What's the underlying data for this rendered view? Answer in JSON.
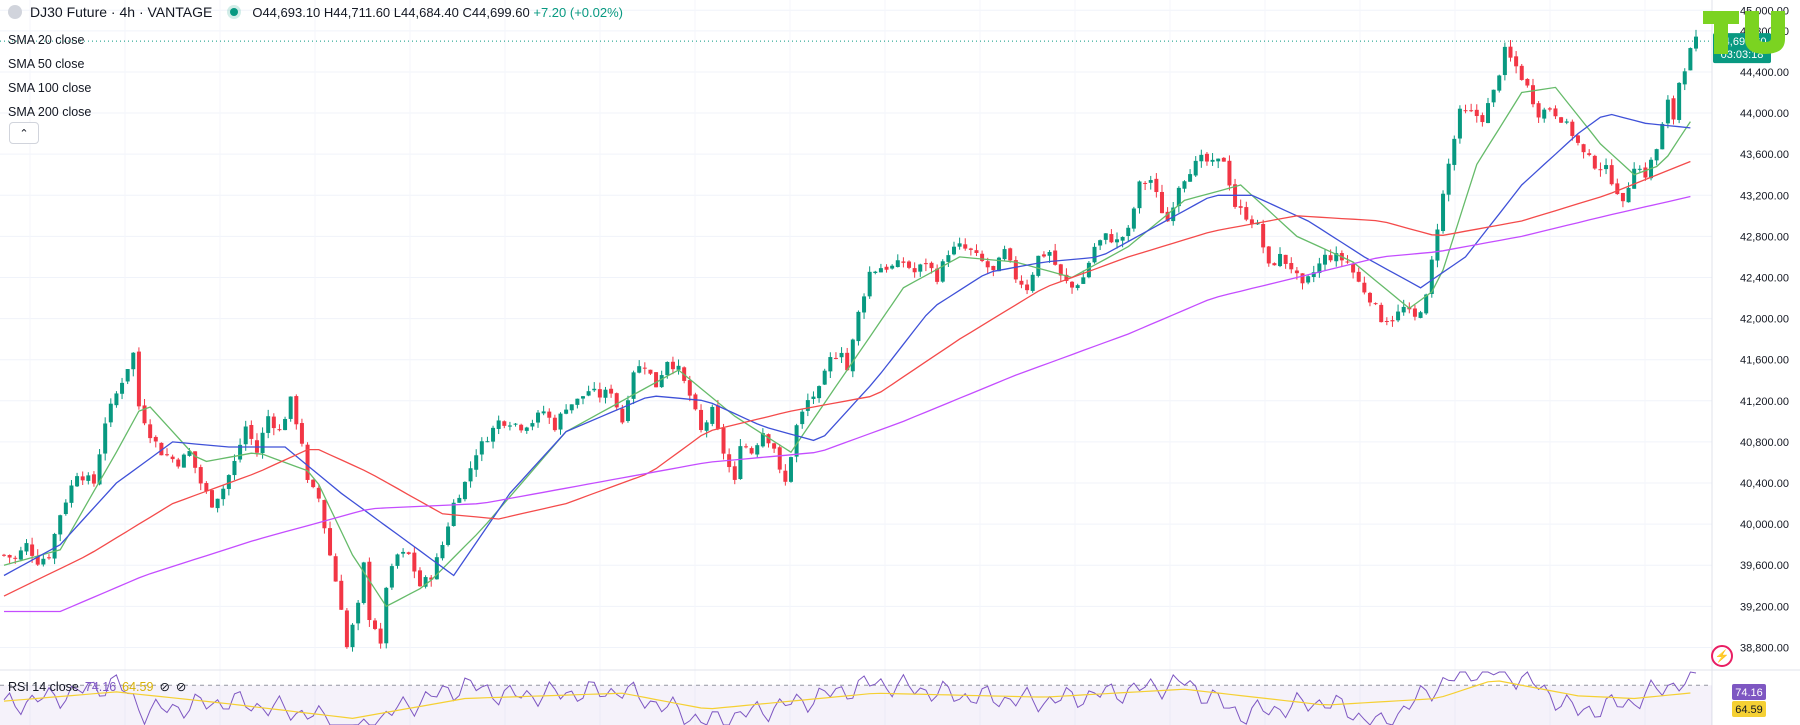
{
  "header": {
    "symbol": "DJ30 Future · 4h · VANTAGE",
    "open": "O44,693.10",
    "high": "H44,711.60",
    "low": "L44,684.40",
    "close": "C44,699.60",
    "change": "+7.20 (+0.02%)"
  },
  "indicators": [
    "SMA 20 close",
    "SMA 50 close",
    "SMA 100 close",
    "SMA 200 close"
  ],
  "rsi_legend": {
    "name": "RSI 14 close",
    "value": "74.16",
    "ma_value": "64.59"
  },
  "price_tag": {
    "price": "44,699.60",
    "countdown": "03:03:18"
  },
  "colors": {
    "up": "#089981",
    "down": "#f23645",
    "sma20": "#66bb6a",
    "sma50": "#3f51d8",
    "sma100": "#f44b4b",
    "sma200": "#c44dff",
    "rsi": "#7e57c2",
    "rsi_ma": "#f5d033",
    "rsi_tag": "#7e57c2",
    "rsi_ma_tag": "#f5d033"
  },
  "icons": [
    "info-circle-icon",
    "live-dot-icon",
    "chevron-up-icon",
    "eye-off-icon",
    "tradingview-logo-icon",
    "flash-icon"
  ],
  "chart_data": {
    "type": "candlestick",
    "y_axis_ticks": [
      "38,800.00",
      "39,200.00",
      "39,600.00",
      "40,000.00",
      "40,400.00",
      "40,800.00",
      "41,200.00",
      "41,600.00",
      "42,000.00",
      "42,400.00",
      "42,800.00",
      "43,200.00",
      "43,600.00",
      "44,000.00",
      "44,400.00",
      "44,800.00",
      "45,000.00"
    ],
    "ylim": [
      38600,
      45100
    ],
    "last_price": 44699.6,
    "close_path": [
      [
        0,
        39700
      ],
      [
        2,
        39660
      ],
      [
        4,
        39800
      ],
      [
        6,
        39640
      ],
      [
        8,
        39700
      ],
      [
        10,
        40100
      ],
      [
        13,
        40500
      ],
      [
        16,
        40400
      ],
      [
        18,
        41000
      ],
      [
        21,
        41400
      ],
      [
        23,
        41660
      ],
      [
        24,
        41150
      ],
      [
        26,
        40880
      ],
      [
        28,
        40700
      ],
      [
        31,
        40600
      ],
      [
        33,
        40700
      ],
      [
        35,
        40400
      ],
      [
        37,
        40200
      ],
      [
        39,
        40350
      ],
      [
        41,
        40600
      ],
      [
        43,
        40950
      ],
      [
        45,
        40700
      ],
      [
        47,
        41050
      ],
      [
        49,
        40900
      ],
      [
        51,
        41200
      ],
      [
        53,
        40800
      ],
      [
        54,
        40400
      ],
      [
        56,
        40250
      ],
      [
        58,
        39700
      ],
      [
        60,
        39200
      ],
      [
        61,
        38800
      ],
      [
        63,
        39200
      ],
      [
        64,
        39600
      ],
      [
        65,
        39100
      ],
      [
        66,
        39000
      ],
      [
        67,
        38800
      ],
      [
        68,
        39400
      ],
      [
        70,
        39700
      ],
      [
        72,
        39700
      ],
      [
        74,
        39400
      ],
      [
        76,
        39500
      ],
      [
        78,
        39800
      ],
      [
        80,
        40200
      ],
      [
        82,
        40400
      ],
      [
        84,
        40700
      ],
      [
        86,
        40850
      ],
      [
        88,
        41000
      ],
      [
        90,
        41000
      ],
      [
        92,
        40950
      ],
      [
        94,
        41000
      ],
      [
        96,
        41100
      ],
      [
        98,
        40950
      ],
      [
        100,
        41150
      ],
      [
        102,
        41200
      ],
      [
        104,
        41300
      ],
      [
        106,
        41250
      ],
      [
        108,
        41300
      ],
      [
        110,
        41000
      ],
      [
        112,
        41500
      ],
      [
        114,
        41550
      ],
      [
        116,
        41350
      ],
      [
        118,
        41600
      ],
      [
        120,
        41500
      ],
      [
        122,
        41250
      ],
      [
        124,
        40900
      ],
      [
        126,
        41100
      ],
      [
        128,
        40700
      ],
      [
        130,
        40400
      ],
      [
        131,
        40800
      ],
      [
        133,
        40700
      ],
      [
        135,
        40900
      ],
      [
        137,
        40750
      ],
      [
        138,
        40500
      ],
      [
        139,
        40400
      ],
      [
        141,
        40950
      ],
      [
        143,
        41200
      ],
      [
        145,
        41300
      ],
      [
        147,
        41600
      ],
      [
        149,
        41700
      ],
      [
        150,
        41500
      ],
      [
        152,
        42050
      ],
      [
        154,
        42450
      ],
      [
        156,
        42500
      ],
      [
        158,
        42500
      ],
      [
        160,
        42550
      ],
      [
        162,
        42450
      ],
      [
        164,
        42550
      ],
      [
        166,
        42400
      ],
      [
        168,
        42650
      ],
      [
        170,
        42700
      ],
      [
        172,
        42650
      ],
      [
        174,
        42550
      ],
      [
        176,
        42450
      ],
      [
        178,
        42650
      ],
      [
        180,
        42400
      ],
      [
        182,
        42300
      ],
      [
        184,
        42600
      ],
      [
        186,
        42650
      ],
      [
        188,
        42400
      ],
      [
        190,
        42300
      ],
      [
        192,
        42400
      ],
      [
        194,
        42700
      ],
      [
        196,
        42800
      ],
      [
        198,
        42750
      ],
      [
        200,
        42850
      ],
      [
        202,
        43300
      ],
      [
        204,
        43350
      ],
      [
        206,
        43050
      ],
      [
        207,
        42950
      ],
      [
        209,
        43300
      ],
      [
        211,
        43450
      ],
      [
        213,
        43550
      ],
      [
        215,
        43500
      ],
      [
        217,
        43550
      ],
      [
        219,
        43100
      ],
      [
        221,
        43000
      ],
      [
        223,
        42900
      ],
      [
        225,
        42500
      ],
      [
        227,
        42600
      ],
      [
        229,
        42500
      ],
      [
        231,
        42300
      ],
      [
        233,
        42450
      ],
      [
        235,
        42600
      ],
      [
        237,
        42600
      ],
      [
        239,
        42550
      ],
      [
        241,
        42350
      ],
      [
        243,
        42200
      ],
      [
        245,
        42000
      ],
      [
        247,
        42000
      ],
      [
        249,
        42100
      ],
      [
        251,
        42000
      ],
      [
        253,
        42200
      ],
      [
        255,
        42900
      ],
      [
        257,
        43500
      ],
      [
        259,
        44000
      ],
      [
        261,
        44000
      ],
      [
        263,
        43950
      ],
      [
        265,
        44200
      ],
      [
        267,
        44600
      ],
      [
        269,
        44450
      ],
      [
        271,
        44250
      ],
      [
        273,
        44000
      ],
      [
        275,
        44050
      ],
      [
        277,
        43950
      ],
      [
        279,
        43800
      ],
      [
        281,
        43600
      ],
      [
        283,
        43500
      ],
      [
        285,
        43450
      ],
      [
        287,
        43250
      ],
      [
        288,
        43100
      ],
      [
        290,
        43500
      ],
      [
        292,
        43400
      ],
      [
        294,
        43650
      ],
      [
        296,
        44100
      ],
      [
        297,
        43950
      ],
      [
        298,
        44300
      ],
      [
        299,
        44450
      ],
      [
        300,
        44600
      ],
      [
        301,
        44700
      ]
    ],
    "candle_count": 302,
    "sma_series": [
      {
        "name": "SMA 20 close",
        "points": [
          [
            0,
            39600
          ],
          [
            10,
            39750
          ],
          [
            20,
            40700
          ],
          [
            25,
            41200
          ],
          [
            35,
            40600
          ],
          [
            45,
            40700
          ],
          [
            55,
            40500
          ],
          [
            62,
            39700
          ],
          [
            68,
            39200
          ],
          [
            75,
            39400
          ],
          [
            85,
            39950
          ],
          [
            100,
            40900
          ],
          [
            110,
            41200
          ],
          [
            120,
            41500
          ],
          [
            130,
            41050
          ],
          [
            140,
            40700
          ],
          [
            150,
            41500
          ],
          [
            160,
            42300
          ],
          [
            170,
            42600
          ],
          [
            180,
            42550
          ],
          [
            190,
            42400
          ],
          [
            200,
            42700
          ],
          [
            210,
            43150
          ],
          [
            220,
            43300
          ],
          [
            230,
            42800
          ],
          [
            240,
            42550
          ],
          [
            250,
            42100
          ],
          [
            255,
            42300
          ],
          [
            262,
            43500
          ],
          [
            270,
            44200
          ],
          [
            276,
            44250
          ],
          [
            284,
            43700
          ],
          [
            290,
            43400
          ],
          [
            295,
            43500
          ],
          [
            301,
            44000
          ]
        ]
      },
      {
        "name": "SMA 50 close",
        "points": [
          [
            0,
            39500
          ],
          [
            10,
            39800
          ],
          [
            20,
            40400
          ],
          [
            30,
            40800
          ],
          [
            40,
            40750
          ],
          [
            50,
            40750
          ],
          [
            60,
            40300
          ],
          [
            70,
            39900
          ],
          [
            80,
            39500
          ],
          [
            90,
            40300
          ],
          [
            100,
            40900
          ],
          [
            115,
            41250
          ],
          [
            125,
            41200
          ],
          [
            135,
            40950
          ],
          [
            145,
            40800
          ],
          [
            155,
            41400
          ],
          [
            165,
            42100
          ],
          [
            175,
            42450
          ],
          [
            185,
            42550
          ],
          [
            195,
            42600
          ],
          [
            205,
            42900
          ],
          [
            215,
            43200
          ],
          [
            222,
            43200
          ],
          [
            232,
            42950
          ],
          [
            242,
            42600
          ],
          [
            252,
            42300
          ],
          [
            260,
            42600
          ],
          [
            270,
            43300
          ],
          [
            280,
            43800
          ],
          [
            285,
            44000
          ],
          [
            292,
            43900
          ],
          [
            301,
            43850
          ]
        ]
      },
      {
        "name": "SMA 100 close",
        "points": [
          [
            0,
            39300
          ],
          [
            15,
            39700
          ],
          [
            30,
            40200
          ],
          [
            45,
            40500
          ],
          [
            55,
            40750
          ],
          [
            65,
            40500
          ],
          [
            78,
            40100
          ],
          [
            88,
            40050
          ],
          [
            100,
            40200
          ],
          [
            115,
            40500
          ],
          [
            125,
            40900
          ],
          [
            140,
            41100
          ],
          [
            155,
            41250
          ],
          [
            170,
            41800
          ],
          [
            185,
            42300
          ],
          [
            200,
            42600
          ],
          [
            215,
            42850
          ],
          [
            230,
            43000
          ],
          [
            245,
            42950
          ],
          [
            255,
            42800
          ],
          [
            270,
            42950
          ],
          [
            285,
            43200
          ],
          [
            301,
            43550
          ]
        ]
      },
      {
        "name": "SMA 200 close",
        "points": [
          [
            0,
            39150
          ],
          [
            10,
            39150
          ],
          [
            25,
            39500
          ],
          [
            45,
            39850
          ],
          [
            65,
            40150
          ],
          [
            85,
            40200
          ],
          [
            105,
            40400
          ],
          [
            125,
            40600
          ],
          [
            145,
            40700
          ],
          [
            160,
            41000
          ],
          [
            180,
            41450
          ],
          [
            200,
            41850
          ],
          [
            215,
            42200
          ],
          [
            230,
            42400
          ],
          [
            245,
            42600
          ],
          [
            255,
            42650
          ],
          [
            270,
            42800
          ],
          [
            285,
            43000
          ],
          [
            301,
            43200
          ]
        ]
      }
    ],
    "rsi": {
      "name": "RSI 14 close",
      "last": 74.16,
      "ma_last": 64.59,
      "ylim": [
        40,
        80
      ],
      "bands": [
        30,
        70
      ],
      "points": [
        [
          0,
          55
        ],
        [
          10,
          62
        ],
        [
          20,
          72
        ],
        [
          25,
          50
        ],
        [
          40,
          58
        ],
        [
          55,
          48
        ],
        [
          62,
          32
        ],
        [
          70,
          52
        ],
        [
          82,
          70
        ],
        [
          90,
          62
        ],
        [
          110,
          66
        ],
        [
          125,
          42
        ],
        [
          140,
          56
        ],
        [
          155,
          72
        ],
        [
          170,
          62
        ],
        [
          185,
          58
        ],
        [
          200,
          66
        ],
        [
          210,
          72
        ],
        [
          220,
          48
        ],
        [
          235,
          58
        ],
        [
          245,
          40
        ],
        [
          255,
          70
        ],
        [
          262,
          82
        ],
        [
          270,
          76
        ],
        [
          280,
          50
        ],
        [
          290,
          58
        ],
        [
          296,
          70
        ],
        [
          301,
          74
        ]
      ],
      "ma_points": [
        [
          0,
          58
        ],
        [
          20,
          65
        ],
        [
          40,
          56
        ],
        [
          62,
          45
        ],
        [
          82,
          60
        ],
        [
          110,
          64
        ],
        [
          125,
          52
        ],
        [
          155,
          64
        ],
        [
          185,
          61
        ],
        [
          210,
          67
        ],
        [
          235,
          55
        ],
        [
          255,
          60
        ],
        [
          265,
          74
        ],
        [
          280,
          62
        ],
        [
          290,
          60
        ],
        [
          301,
          64.6
        ]
      ]
    }
  }
}
